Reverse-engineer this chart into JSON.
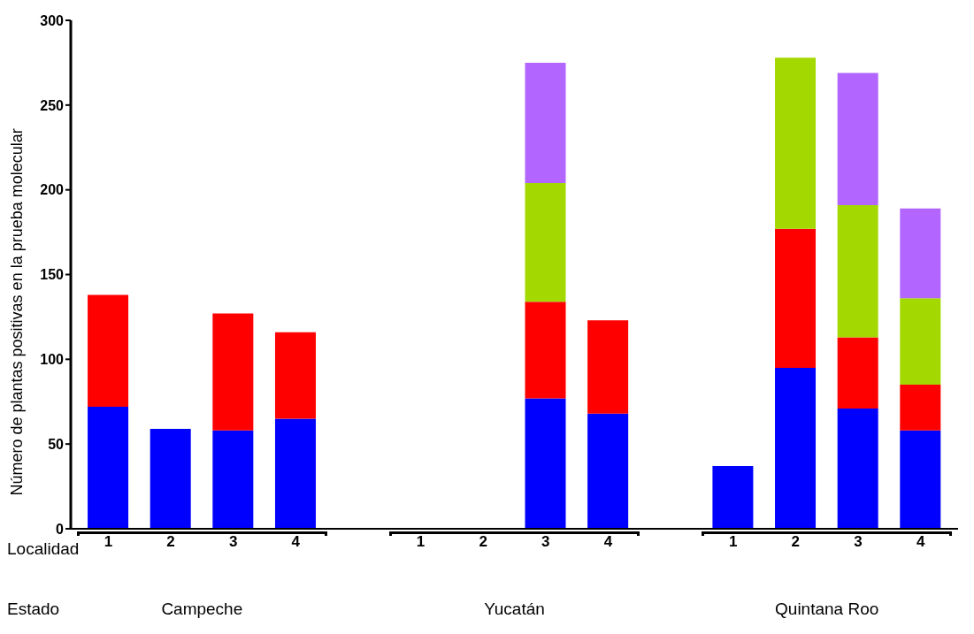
{
  "chart_data": {
    "type": "bar",
    "stacked": true,
    "ylabel": "Número de plantas positivas en la prueba molecular",
    "categories": [
      "1",
      "2",
      "3",
      "4",
      "1",
      "2",
      "3",
      "4",
      "1",
      "2",
      "3",
      "4"
    ],
    "series": [
      {
        "color": "#0000ff",
        "values": [
          72,
          59,
          58,
          65,
          null,
          null,
          77,
          68,
          37,
          95,
          71,
          58
        ]
      },
      {
        "color": "#ff0000",
        "values": [
          66,
          null,
          69,
          51,
          null,
          null,
          57,
          55,
          null,
          82,
          42,
          27
        ]
      },
      {
        "color": "#a3d900",
        "values": [
          null,
          null,
          null,
          null,
          null,
          null,
          70,
          null,
          null,
          101,
          78,
          51
        ]
      },
      {
        "color": "#b266ff",
        "values": [
          null,
          null,
          null,
          null,
          null,
          null,
          71,
          null,
          null,
          null,
          78,
          53
        ]
      }
    ],
    "annotations": [
      "Localidad",
      "Estado",
      "Campeche",
      "Yucatán",
      "Quintana Roo"
    ],
    "ylim": [
      0,
      300
    ],
    "yticks": [
      0,
      50,
      100,
      150,
      200,
      250,
      300
    ],
    "grid": false,
    "legend": false
  }
}
